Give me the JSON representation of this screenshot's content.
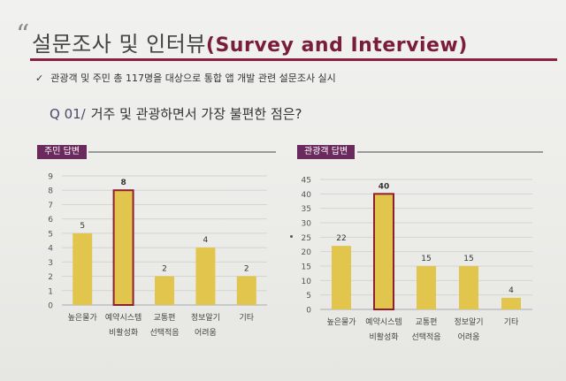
{
  "header": {
    "title_ko": "설문조사 및 인터뷰",
    "title_en": "(Survey and Interview)"
  },
  "bullet": "관광객 및 주민 총 117명을 대상으로 통합 앱 개발 관련 설문조사 실시",
  "question": {
    "number": "Q 01/",
    "text": "거주 및 관광하면서 가장 불편한 점은?"
  },
  "chart_data": [
    {
      "type": "bar",
      "title": "주민 답변",
      "categories": [
        [
          "높은물가"
        ],
        [
          "예약시스템",
          "비활성화"
        ],
        [
          "교통편",
          "선택적음"
        ],
        [
          "정보알기",
          "어려움"
        ],
        [
          "기타"
        ]
      ],
      "values": [
        5,
        8,
        2,
        4,
        2
      ],
      "highlight_index": 1,
      "ylim": [
        0,
        9
      ],
      "yticks": [
        0,
        1,
        2,
        3,
        4,
        5,
        6,
        7,
        8,
        9
      ],
      "grid": true
    },
    {
      "type": "bar",
      "title": "관광객 답변",
      "categories": [
        [
          "높은물가"
        ],
        [
          "예약시스템",
          "비활성화"
        ],
        [
          "교통편",
          "선택적음"
        ],
        [
          "정보알기",
          "어려움"
        ],
        [
          "기타"
        ]
      ],
      "values": [
        22,
        40,
        15,
        15,
        4
      ],
      "highlight_index": 1,
      "ylim": [
        0,
        45
      ],
      "yticks": [
        0,
        5,
        10,
        15,
        20,
        25,
        30,
        35,
        40,
        45
      ],
      "grid": true
    }
  ],
  "colors": {
    "bar": "#e2c54d",
    "highlight_border": "#8e1f2c",
    "tag_bg": "#6b2a5e",
    "title_en": "#7a1d3c"
  }
}
